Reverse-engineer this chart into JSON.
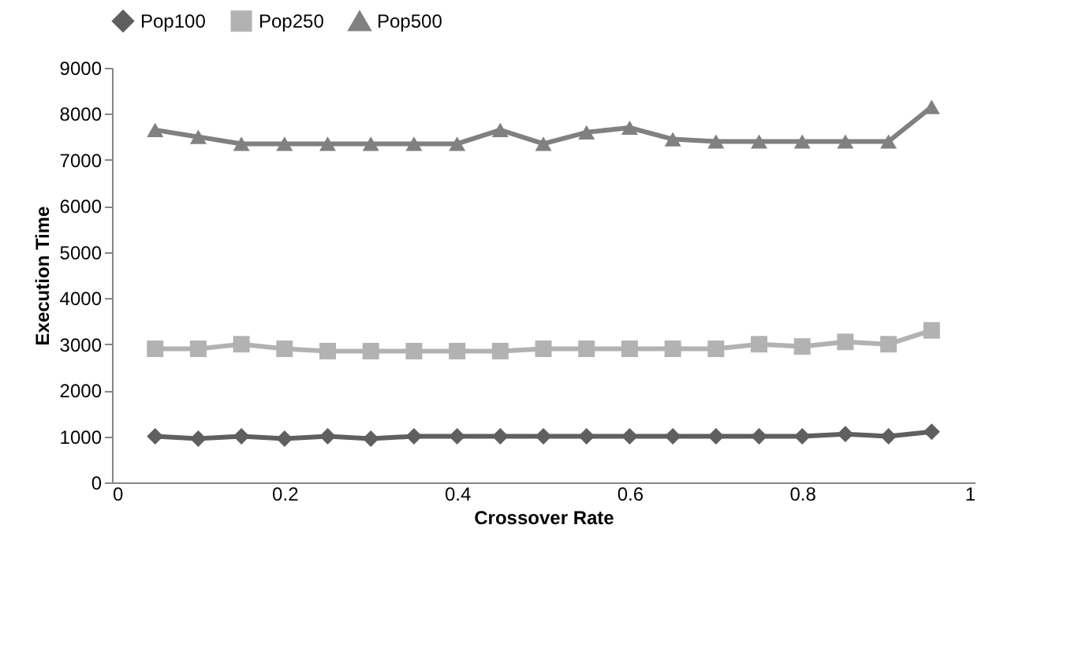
{
  "chart_data": {
    "type": "line",
    "xlabel": "Crossover Rate",
    "ylabel": "Execution Time",
    "x": [
      0.05,
      0.1,
      0.15,
      0.2,
      0.25,
      0.3,
      0.35,
      0.4,
      0.45,
      0.5,
      0.55,
      0.6,
      0.65,
      0.7,
      0.75,
      0.8,
      0.85,
      0.9,
      0.95
    ],
    "series": [
      {
        "name": "Pop100",
        "color": "#5f5f5f",
        "marker": "diamond",
        "values": [
          1000,
          950,
          1000,
          950,
          1000,
          950,
          1000,
          1000,
          1000,
          1000,
          1000,
          1000,
          1000,
          1000,
          1000,
          1000,
          1050,
          1000,
          1100
        ]
      },
      {
        "name": "Pop250",
        "color": "#b2b2b2",
        "marker": "square",
        "values": [
          2900,
          2900,
          3000,
          2900,
          2850,
          2850,
          2850,
          2850,
          2850,
          2900,
          2900,
          2900,
          2900,
          2900,
          3000,
          2950,
          3050,
          3000,
          3300
        ]
      },
      {
        "name": "Pop500",
        "color": "#808080",
        "marker": "triangle",
        "values": [
          7650,
          7500,
          7350,
          7350,
          7350,
          7350,
          7350,
          7350,
          7650,
          7350,
          7600,
          7700,
          7450,
          7400,
          7400,
          7400,
          7400,
          7400,
          8150
        ]
      }
    ],
    "xlim": [
      0,
      1
    ],
    "xticks": [
      0,
      0.2,
      0.4,
      0.6,
      0.8,
      1
    ],
    "ylim": [
      0,
      9000
    ],
    "yticks": [
      0,
      1000,
      2000,
      3000,
      4000,
      5000,
      6000,
      7000,
      8000,
      9000
    ],
    "grid": false,
    "legend": "top"
  }
}
